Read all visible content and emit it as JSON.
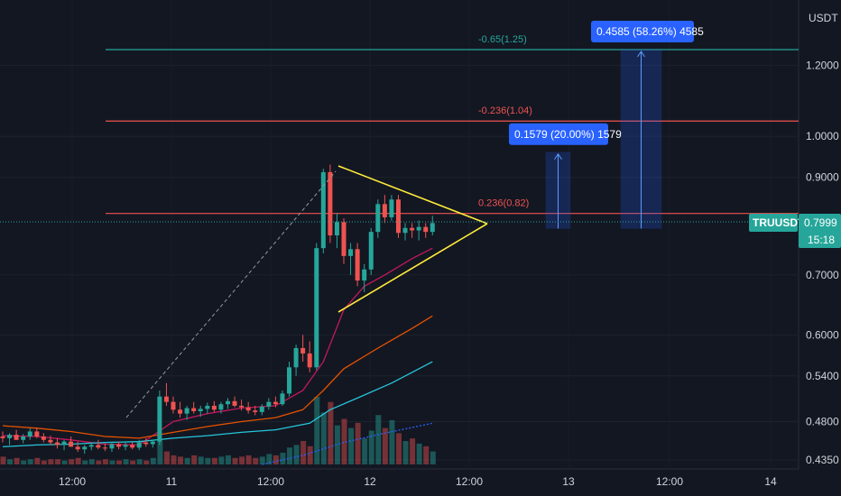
{
  "chart_data": {
    "type": "candlestick",
    "symbol": "TRUUSDT",
    "quote_currency": "USDT",
    "last_price": "0.7999",
    "countdown": "15:18",
    "y_scale": "log",
    "ylim": [
      0.425,
      1.42
    ],
    "y_ticks": [
      "1.2000",
      "1.0000",
      "0.9000",
      "0.7000",
      "0.6000",
      "0.5400",
      "0.4800",
      "0.4350"
    ],
    "x_ticks": [
      "12:00",
      "11",
      "12:00",
      "12",
      "12:00",
      "13",
      "12:00",
      "14"
    ],
    "fib_levels": [
      {
        "label": "-0.65(1.25)",
        "price": 1.25,
        "color": "#26a69a"
      },
      {
        "label": "-0.236(1.04)",
        "price": 1.04,
        "color": "#ef5350"
      },
      {
        "label": "0.236(0.82)",
        "price": 0.82,
        "color": "#ef5350"
      }
    ],
    "targets": [
      {
        "label": "0.1579 (20.00%) 1579",
        "from": 0.8,
        "to": 0.96
      },
      {
        "label": "0.4585 (58.26%) 4585",
        "from": 0.8,
        "to": 1.25
      }
    ],
    "candles": [
      [
        0.462,
        0.468,
        0.455,
        0.46
      ],
      [
        0.46,
        0.466,
        0.452,
        0.464
      ],
      [
        0.464,
        0.47,
        0.458,
        0.458
      ],
      [
        0.458,
        0.465,
        0.454,
        0.462
      ],
      [
        0.462,
        0.472,
        0.458,
        0.468
      ],
      [
        0.468,
        0.473,
        0.46,
        0.462
      ],
      [
        0.462,
        0.466,
        0.455,
        0.458
      ],
      [
        0.458,
        0.463,
        0.452,
        0.455
      ],
      [
        0.455,
        0.46,
        0.448,
        0.452
      ],
      [
        0.452,
        0.458,
        0.446,
        0.456
      ],
      [
        0.456,
        0.462,
        0.45,
        0.45
      ],
      [
        0.45,
        0.456,
        0.444,
        0.447
      ],
      [
        0.447,
        0.452,
        0.442,
        0.45
      ],
      [
        0.45,
        0.455,
        0.446,
        0.452
      ],
      [
        0.452,
        0.458,
        0.447,
        0.449
      ],
      [
        0.449,
        0.454,
        0.445,
        0.448
      ],
      [
        0.448,
        0.455,
        0.444,
        0.453
      ],
      [
        0.453,
        0.456,
        0.447,
        0.45
      ],
      [
        0.45,
        0.456,
        0.446,
        0.452
      ],
      [
        0.452,
        0.455,
        0.447,
        0.449
      ],
      [
        0.449,
        0.458,
        0.446,
        0.455
      ],
      [
        0.455,
        0.46,
        0.45,
        0.453
      ],
      [
        0.453,
        0.458,
        0.449,
        0.456
      ],
      [
        0.456,
        0.52,
        0.452,
        0.512
      ],
      [
        0.512,
        0.53,
        0.5,
        0.505
      ],
      [
        0.505,
        0.512,
        0.49,
        0.495
      ],
      [
        0.495,
        0.505,
        0.485,
        0.49
      ],
      [
        0.49,
        0.5,
        0.482,
        0.497
      ],
      [
        0.497,
        0.505,
        0.49,
        0.493
      ],
      [
        0.493,
        0.5,
        0.486,
        0.496
      ],
      [
        0.496,
        0.504,
        0.49,
        0.5
      ],
      [
        0.5,
        0.506,
        0.492,
        0.495
      ],
      [
        0.495,
        0.505,
        0.49,
        0.502
      ],
      [
        0.502,
        0.51,
        0.496,
        0.506
      ],
      [
        0.506,
        0.512,
        0.498,
        0.5
      ],
      [
        0.5,
        0.508,
        0.494,
        0.498
      ],
      [
        0.498,
        0.505,
        0.49,
        0.494
      ],
      [
        0.494,
        0.5,
        0.488,
        0.492
      ],
      [
        0.492,
        0.502,
        0.488,
        0.499
      ],
      [
        0.499,
        0.51,
        0.495,
        0.505
      ],
      [
        0.505,
        0.512,
        0.498,
        0.502
      ],
      [
        0.502,
        0.52,
        0.5,
        0.516
      ],
      [
        0.516,
        0.56,
        0.512,
        0.552
      ],
      [
        0.552,
        0.585,
        0.54,
        0.58
      ],
      [
        0.58,
        0.6,
        0.56,
        0.572
      ],
      [
        0.572,
        0.59,
        0.545,
        0.552
      ],
      [
        0.552,
        0.76,
        0.548,
        0.75
      ],
      [
        0.75,
        0.92,
        0.74,
        0.912
      ],
      [
        0.912,
        0.93,
        0.76,
        0.775
      ],
      [
        0.775,
        0.82,
        0.75,
        0.802
      ],
      [
        0.802,
        0.81,
        0.72,
        0.735
      ],
      [
        0.735,
        0.76,
        0.7,
        0.748
      ],
      [
        0.748,
        0.76,
        0.68,
        0.69
      ],
      [
        0.69,
        0.72,
        0.67,
        0.71
      ],
      [
        0.71,
        0.79,
        0.7,
        0.782
      ],
      [
        0.782,
        0.85,
        0.77,
        0.84
      ],
      [
        0.84,
        0.86,
        0.8,
        0.812
      ],
      [
        0.812,
        0.86,
        0.805,
        0.85
      ],
      [
        0.85,
        0.86,
        0.77,
        0.78
      ],
      [
        0.78,
        0.8,
        0.765,
        0.79
      ],
      [
        0.79,
        0.8,
        0.77,
        0.785
      ],
      [
        0.785,
        0.805,
        0.765,
        0.792
      ],
      [
        0.792,
        0.8,
        0.77,
        0.782
      ],
      [
        0.782,
        0.815,
        0.775,
        0.8
      ]
    ],
    "ma_lines": [
      {
        "color": "#c2185b",
        "points": [
          [
            0,
            0.463
          ],
          [
            5,
            0.462
          ],
          [
            10,
            0.458
          ],
          [
            15,
            0.453
          ],
          [
            20,
            0.452
          ],
          [
            25,
            0.48
          ],
          [
            30,
            0.49
          ],
          [
            35,
            0.497
          ],
          [
            40,
            0.5
          ],
          [
            44,
            0.52
          ],
          [
            47,
            0.56
          ],
          [
            50,
            0.64
          ],
          [
            53,
            0.68
          ],
          [
            56,
            0.7
          ],
          [
            60,
            0.73
          ],
          [
            63,
            0.75
          ]
        ]
      },
      {
        "color": "#e65100",
        "points": [
          [
            0,
            0.475
          ],
          [
            5,
            0.472
          ],
          [
            10,
            0.468
          ],
          [
            15,
            0.462
          ],
          [
            20,
            0.46
          ],
          [
            25,
            0.467
          ],
          [
            30,
            0.474
          ],
          [
            35,
            0.48
          ],
          [
            40,
            0.485
          ],
          [
            44,
            0.495
          ],
          [
            47,
            0.52
          ],
          [
            50,
            0.55
          ],
          [
            55,
            0.58
          ],
          [
            60,
            0.61
          ],
          [
            63,
            0.63
          ]
        ]
      },
      {
        "color": "#26c6da",
        "points": [
          [
            0,
            0.45
          ],
          [
            5,
            0.452
          ],
          [
            10,
            0.453
          ],
          [
            15,
            0.455
          ],
          [
            20,
            0.456
          ],
          [
            25,
            0.46
          ],
          [
            30,
            0.463
          ],
          [
            35,
            0.467
          ],
          [
            40,
            0.47
          ],
          [
            45,
            0.478
          ],
          [
            48,
            0.495
          ],
          [
            52,
            0.51
          ],
          [
            57,
            0.53
          ],
          [
            63,
            0.56
          ]
        ]
      },
      {
        "color": "#2962ff",
        "points": [
          [
            38,
            0.43
          ],
          [
            44,
            0.44
          ],
          [
            50,
            0.455
          ],
          [
            56,
            0.466
          ],
          [
            63,
            0.478
          ]
        ],
        "dashed": true
      }
    ],
    "volumes": [
      6,
      4,
      5,
      3,
      4,
      5,
      3,
      4,
      4,
      3,
      4,
      5,
      3,
      4,
      3,
      4,
      3,
      3,
      4,
      3,
      4,
      3,
      5,
      18,
      10,
      7,
      6,
      5,
      7,
      6,
      5,
      5,
      6,
      7,
      5,
      6,
      7,
      5,
      6,
      8,
      7,
      9,
      13,
      15,
      18,
      14,
      52,
      40,
      48,
      30,
      35,
      28,
      32,
      20,
      26,
      38,
      28,
      34,
      24,
      18,
      20,
      16,
      14,
      10
    ]
  }
}
